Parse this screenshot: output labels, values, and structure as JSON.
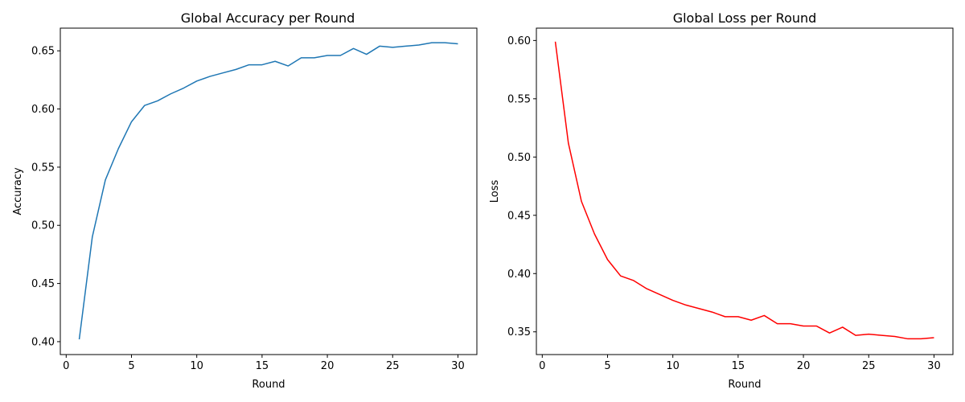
{
  "chart_data": [
    {
      "type": "line",
      "title": "Global Accuracy per Round",
      "xlabel": "Round",
      "ylabel": "Accuracy",
      "xlim": [
        -0.45,
        31.45
      ],
      "ylim": [
        0.3889,
        0.6695
      ],
      "xticks": [
        0,
        5,
        10,
        15,
        20,
        25,
        30
      ],
      "xtick_labels": [
        "0",
        "5",
        "10",
        "15",
        "20",
        "25",
        "30"
      ],
      "yticks": [
        0.4,
        0.45,
        0.5,
        0.55,
        0.6,
        0.65
      ],
      "ytick_labels": [
        "0.40",
        "0.45",
        "0.50",
        "0.55",
        "0.60",
        "0.65"
      ],
      "grid": false,
      "series": [
        {
          "color": "#1f77b4",
          "x": [
            1,
            2,
            3,
            4,
            5,
            6,
            7,
            8,
            9,
            10,
            11,
            12,
            13,
            14,
            15,
            16,
            17,
            18,
            19,
            20,
            21,
            22,
            23,
            24,
            25,
            26,
            27,
            28,
            29,
            30
          ],
          "y": [
            0.402,
            0.49,
            0.539,
            0.566,
            0.589,
            0.603,
            0.607,
            0.613,
            0.618,
            0.624,
            0.628,
            0.631,
            0.634,
            0.638,
            0.638,
            0.641,
            0.637,
            0.644,
            0.644,
            0.646,
            0.646,
            0.652,
            0.647,
            0.654,
            0.653,
            0.654,
            0.655,
            0.657,
            0.657,
            0.656
          ]
        }
      ]
    },
    {
      "type": "line",
      "title": "Global Loss per Round",
      "xlabel": "Round",
      "ylabel": "Loss",
      "xlim": [
        -0.45,
        31.45
      ],
      "ylim": [
        0.3305,
        0.6106
      ],
      "xticks": [
        0,
        5,
        10,
        15,
        20,
        25,
        30
      ],
      "xtick_labels": [
        "0",
        "5",
        "10",
        "15",
        "20",
        "25",
        "30"
      ],
      "yticks": [
        0.35,
        0.4,
        0.45,
        0.5,
        0.55,
        0.6
      ],
      "ytick_labels": [
        "0.35",
        "0.40",
        "0.45",
        "0.50",
        "0.55",
        "0.60"
      ],
      "grid": false,
      "series": [
        {
          "color": "#ff0000",
          "x": [
            1,
            2,
            3,
            4,
            5,
            6,
            7,
            8,
            9,
            10,
            11,
            12,
            13,
            14,
            15,
            16,
            17,
            18,
            19,
            20,
            21,
            22,
            23,
            24,
            25,
            26,
            27,
            28,
            29,
            30
          ],
          "y": [
            0.599,
            0.512,
            0.462,
            0.434,
            0.412,
            0.398,
            0.394,
            0.387,
            0.382,
            0.377,
            0.373,
            0.37,
            0.367,
            0.363,
            0.363,
            0.36,
            0.364,
            0.357,
            0.357,
            0.355,
            0.355,
            0.349,
            0.354,
            0.347,
            0.348,
            0.347,
            0.346,
            0.344,
            0.344,
            0.345
          ]
        }
      ]
    }
  ]
}
